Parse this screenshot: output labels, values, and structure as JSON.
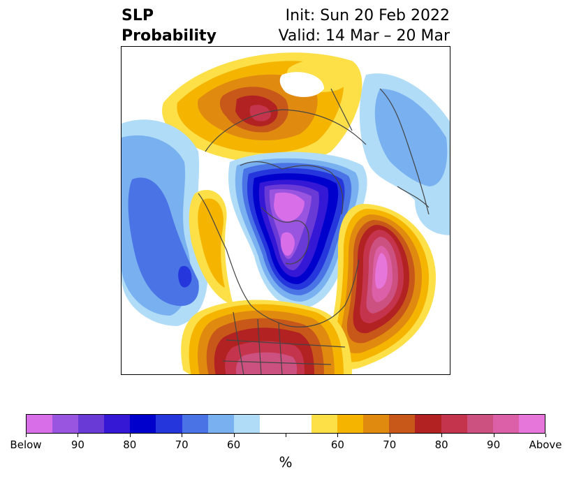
{
  "title": {
    "left_line1": "SLP",
    "left_line2": "Probability",
    "right_line1": "Init: Sun 20 Feb 2022",
    "right_line2": "Valid: 14 Mar – 20 Mar"
  },
  "colorbar": {
    "colors": [
      "#d86ee8",
      "#9a55e0",
      "#6a3ad6",
      "#3518d6",
      "#0000cc",
      "#2436dc",
      "#4a74e6",
      "#78b0f0",
      "#b0dcf8",
      "#ffffff",
      "#ffffff",
      "#fde047",
      "#f4b400",
      "#e08a10",
      "#c8581a",
      "#b22222",
      "#c4344c",
      "#cc5080",
      "#dc60a8",
      "#e676da"
    ],
    "labels": [
      "Below",
      "90",
      "80",
      "70",
      "60",
      "",
      "60",
      "70",
      "80",
      "90",
      "Above"
    ],
    "unit": "%"
  }
}
